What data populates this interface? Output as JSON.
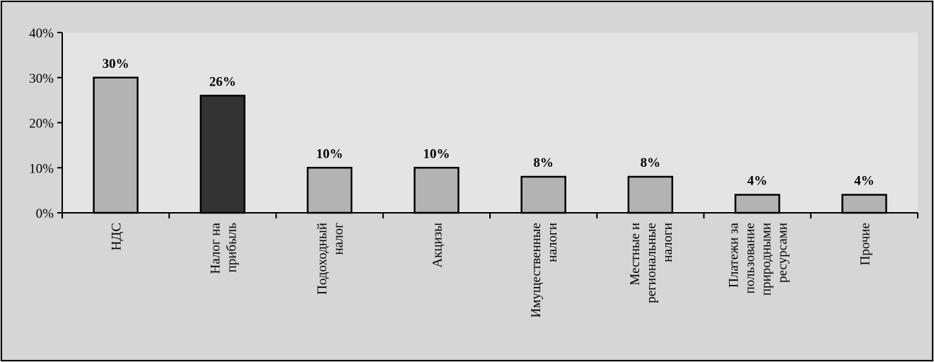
{
  "chart_data": {
    "type": "bar",
    "title": "",
    "xlabel": "",
    "ylabel": "",
    "ylim": [
      0,
      40
    ],
    "y_ticks": [
      "0%",
      "10%",
      "20%",
      "30%",
      "40%"
    ],
    "y_tick_values": [
      0,
      10,
      20,
      30,
      40
    ],
    "grid": false,
    "legend": "none",
    "categories": [
      [
        "НДС"
      ],
      [
        "Налог на",
        "прибыль"
      ],
      [
        "Подоходный",
        "налог"
      ],
      [
        "Акцизы"
      ],
      [
        "Имущественные",
        "налоги"
      ],
      [
        "Местные и",
        "региональные",
        "налоги"
      ],
      [
        "Платежи за",
        "пользование",
        "природными",
        "ресурсами"
      ],
      [
        "Прочие"
      ]
    ],
    "values": [
      30,
      26,
      10,
      10,
      8,
      8,
      4,
      4
    ],
    "data_labels": [
      "30%",
      "26%",
      "10%",
      "10%",
      "8%",
      "8%",
      "4%",
      "4%"
    ],
    "colors": {
      "background": "#d6d6d6",
      "plot_background": "#e6e6e6",
      "bar_default": "#b3b3b3",
      "bar_highlight": "#333333",
      "axis": "#000000"
    },
    "highlight_index": 1
  }
}
